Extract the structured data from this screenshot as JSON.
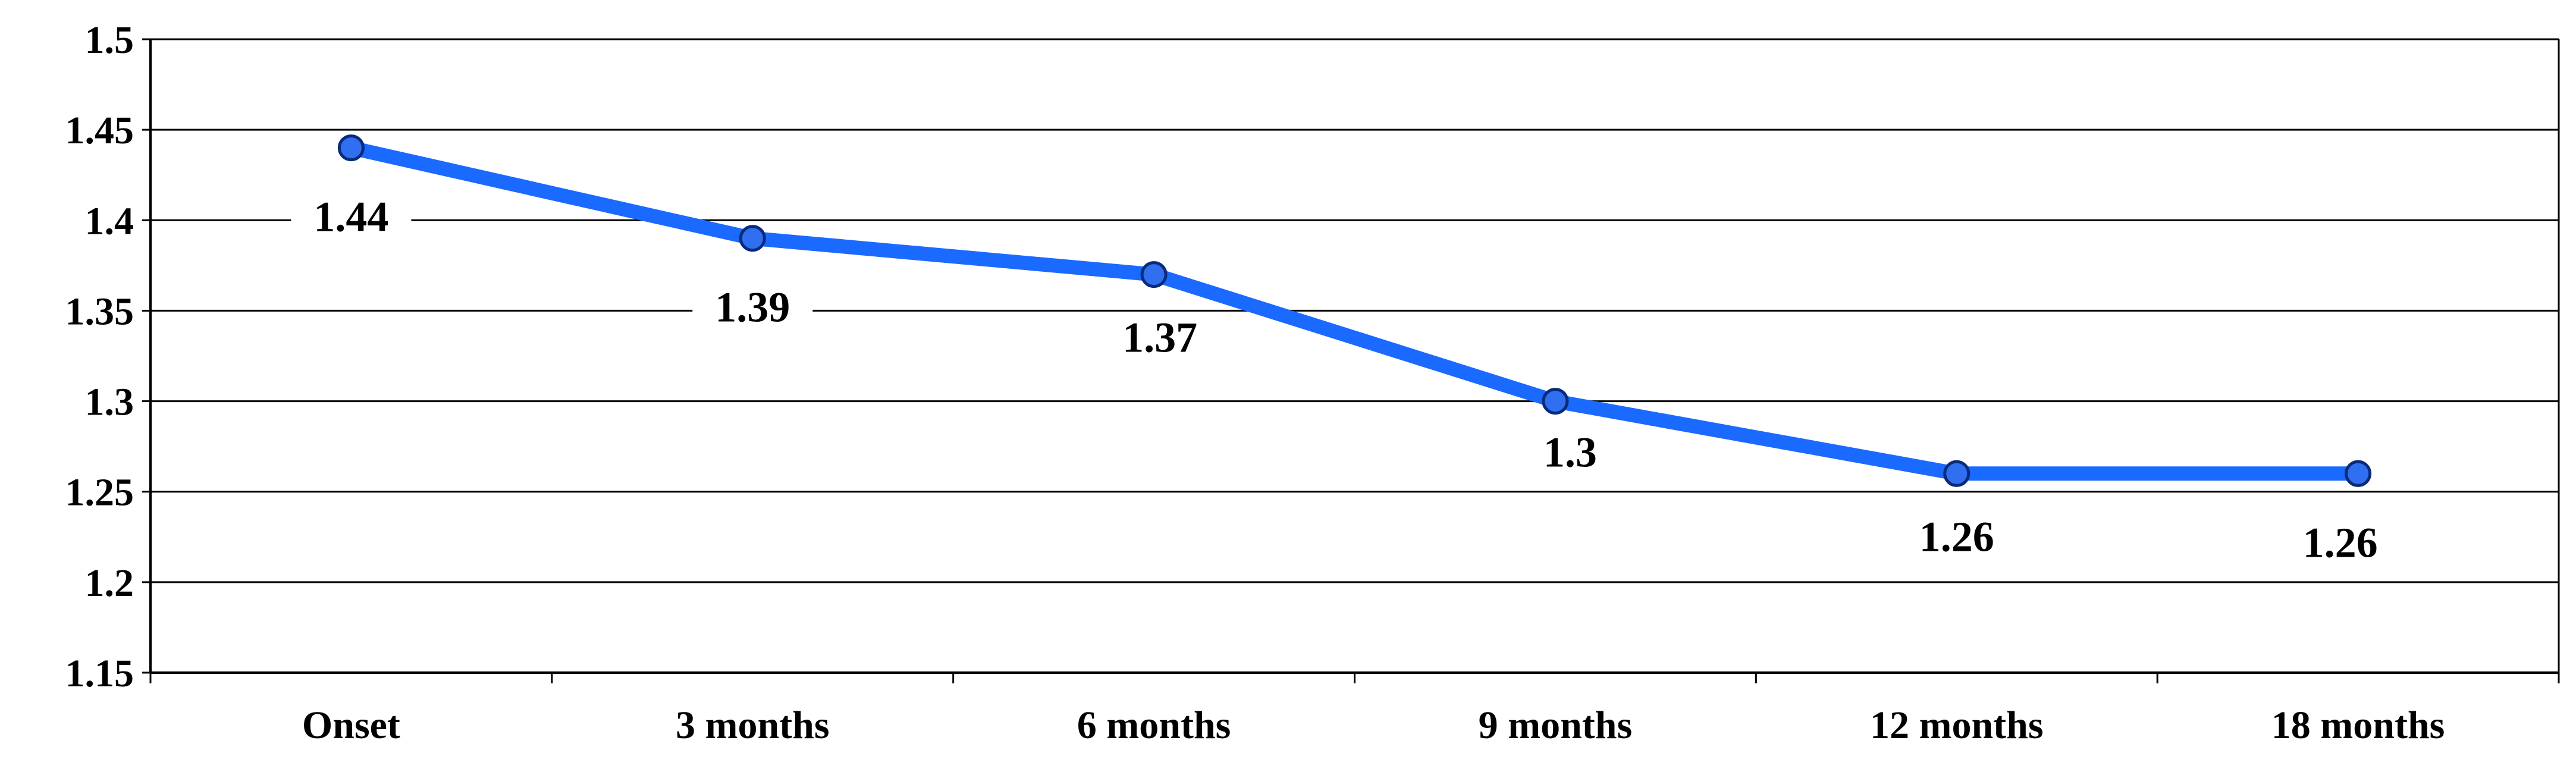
{
  "chart_data": {
    "type": "line",
    "title": "",
    "xlabel": "",
    "ylabel": "",
    "categories": [
      "Onset",
      "3 months",
      "6 months",
      "9 months",
      "12 months",
      "18 months"
    ],
    "series": [
      {
        "values": [
          1.44,
          1.39,
          1.37,
          1.3,
          1.26,
          1.26
        ]
      }
    ],
    "data_labels": [
      "1.44",
      "1.39",
      "1.37",
      "1.3",
      "1.26",
      "1.26"
    ],
    "ylim": [
      1.15,
      1.5
    ],
    "yticks": [
      1.15,
      1.2,
      1.25,
      1.3,
      1.35,
      1.4,
      1.45,
      1.5
    ],
    "ytick_labels": [
      "1.15",
      "1.2",
      "1.25",
      "1.3",
      "1.35",
      "1.4",
      "1.45",
      "1.5"
    ],
    "grid": true,
    "legend": "none",
    "colors": {
      "line": "#1a6aff",
      "marker_fill": "#2f6ff0",
      "marker_stroke": "#0a2a7a",
      "grid": "#000000"
    }
  }
}
